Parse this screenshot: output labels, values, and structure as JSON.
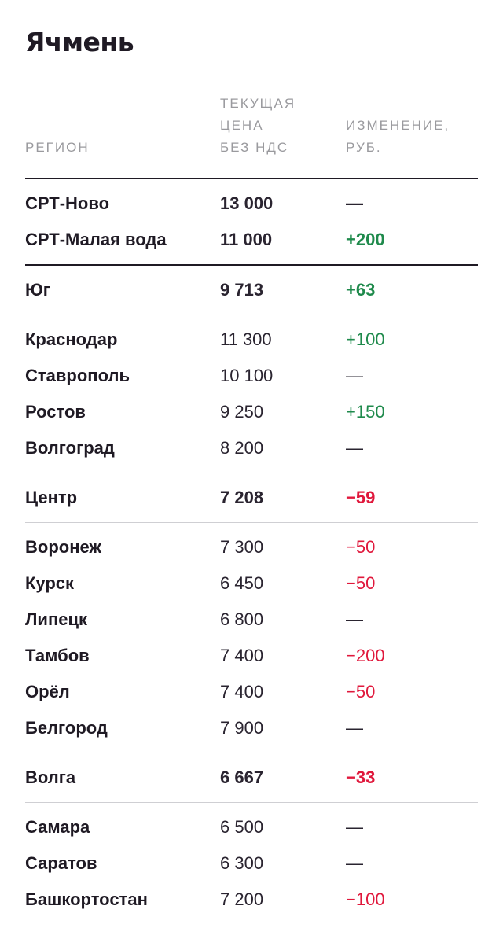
{
  "title": "Ячмень",
  "header": {
    "region": "РЕГИОН",
    "price": [
      "ТЕКУЩАЯ",
      "ЦЕНА",
      "БЕЗ НДС"
    ],
    "change": [
      "ИЗМЕНЕНИЕ,",
      "РУБ."
    ]
  },
  "colors": {
    "positive": "#1f8a4c",
    "negative": "#e0183c",
    "text": "#1f1a24",
    "muted": "#9a9a9e"
  },
  "rows": {
    "srt_novo": {
      "region": "СРТ-Ново",
      "price": "13 000",
      "change": "—"
    },
    "srt_malaya": {
      "region": "СРТ-Малая вода",
      "price": "11 000",
      "change": "+200"
    },
    "yug": {
      "region": "Юг",
      "price": "9 713",
      "change": "+63"
    },
    "krasnodar": {
      "region": "Краснодар",
      "price": "11 300",
      "change": "+100"
    },
    "stavropol": {
      "region": "Ставрополь",
      "price": "10 100",
      "change": "—"
    },
    "rostov": {
      "region": "Ростов",
      "price": "9 250",
      "change": "+150"
    },
    "volgograd": {
      "region": "Волгоград",
      "price": "8 200",
      "change": "—"
    },
    "centr": {
      "region": "Центр",
      "price": "7 208",
      "change": "−59"
    },
    "voronezh": {
      "region": "Воронеж",
      "price": "7 300",
      "change": "−50"
    },
    "kursk": {
      "region": "Курск",
      "price": "6 450",
      "change": "−50"
    },
    "lipetsk": {
      "region": "Липецк",
      "price": "6 800",
      "change": "—"
    },
    "tambov": {
      "region": "Тамбов",
      "price": "7 400",
      "change": "−200"
    },
    "orel": {
      "region": "Орёл",
      "price": "7 400",
      "change": "−50"
    },
    "belgorod": {
      "region": "Белгород",
      "price": "7 900",
      "change": "—"
    },
    "volga": {
      "region": "Волга",
      "price": "6 667",
      "change": "−33"
    },
    "samara": {
      "region": "Самара",
      "price": "6 500",
      "change": "—"
    },
    "saratov": {
      "region": "Саратов",
      "price": "6 300",
      "change": "—"
    },
    "bashkortostan": {
      "region": "Башкортостан",
      "price": "7 200",
      "change": "−100"
    }
  }
}
